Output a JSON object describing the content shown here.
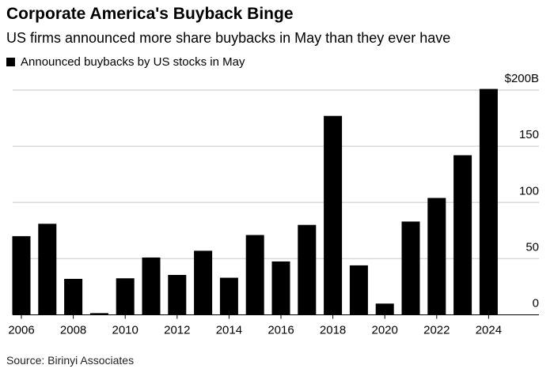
{
  "title": "Corporate America's Buyback Binge",
  "subtitle": "US firms announced more share buybacks in May than they ever have",
  "source": "Source: Birinyi Associates",
  "chart_data": {
    "type": "bar",
    "title": "Corporate America's Buyback Binge",
    "subtitle": "US firms announced more share buybacks in May than they ever have",
    "legend": "top-left",
    "series": [
      {
        "name": "Announced buybacks by US stocks in May",
        "color": "#000000",
        "values": [
          70,
          81,
          32,
          1.5,
          32.5,
          51,
          35.5,
          57,
          33,
          71,
          47.5,
          80,
          177,
          44,
          10,
          83,
          104,
          142,
          201
        ]
      }
    ],
    "categories": [
      "2006",
      "2007",
      "2008",
      "2009",
      "2010",
      "2011",
      "2012",
      "2013",
      "2014",
      "2015",
      "2016",
      "2017",
      "2018",
      "2019",
      "2020",
      "2021",
      "2022",
      "2023",
      "2024"
    ],
    "x_tick_labels": [
      "2006",
      "2008",
      "2010",
      "2012",
      "2014",
      "2016",
      "2018",
      "2020",
      "2022",
      "2024"
    ],
    "y_tick_labels": [
      "0",
      "50",
      "100",
      "150",
      "$200B"
    ],
    "y_ticks": [
      0,
      50,
      100,
      150,
      200
    ],
    "ylim": [
      0,
      200
    ],
    "y_axis_side": "right",
    "grid": true,
    "gridline_color": "#d9d9d9"
  }
}
